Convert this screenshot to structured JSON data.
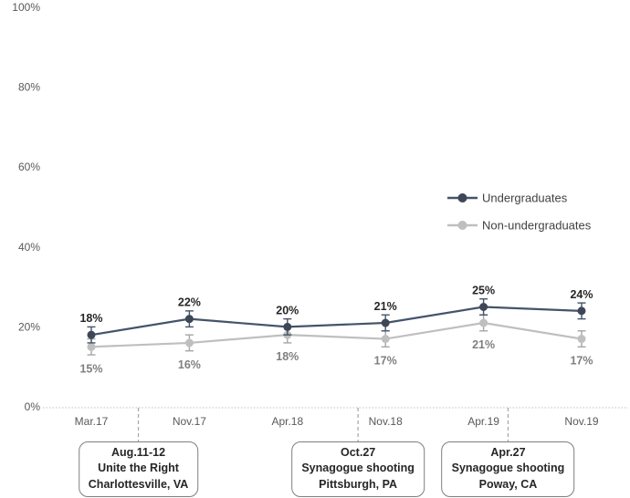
{
  "chart_data": {
    "type": "line",
    "title": "",
    "xlabel": "",
    "ylabel": "",
    "grid": false,
    "categories": [
      "Mar.17",
      "Nov.17",
      "Apr.18",
      "Nov.18",
      "Apr.19",
      "Nov.19"
    ],
    "series": [
      {
        "name": "Undergraduates",
        "values": [
          18,
          22,
          20,
          21,
          25,
          24
        ],
        "labels": [
          "18%",
          "22%",
          "20%",
          "21%",
          "25%",
          "24%"
        ],
        "color": "#44546A",
        "marker_color": "#3E4757",
        "error_color": "#44546A",
        "error": 2,
        "label_color": "#262626",
        "label_position": "above"
      },
      {
        "name": "Non-undergraduates",
        "values": [
          15,
          16,
          18,
          17,
          21,
          17
        ],
        "labels": [
          "15%",
          "16%",
          "18%",
          "17%",
          "21%",
          "17%"
        ],
        "color": "#BFBFBF",
        "marker_color": "#BFBFBF",
        "error_color": "#A6A6A6",
        "error": 2,
        "label_color": "#7F7F7F",
        "label_position": "below"
      }
    ],
    "y_axis": {
      "ticks": [
        "0%",
        "20%",
        "40%",
        "60%",
        "80%",
        "100%"
      ],
      "tick_values": [
        0,
        20,
        40,
        60,
        80,
        100
      ],
      "min": 0,
      "max": 100
    },
    "legend": {
      "position": "center-right",
      "entries": [
        "Undergraduates",
        "Non-undergraduates"
      ]
    },
    "annotations": [
      {
        "pos": 0.48,
        "lines": [
          "Aug.11-12",
          "Unite the Right",
          "Charlottesville, VA"
        ]
      },
      {
        "pos": 2.72,
        "lines": [
          "Oct.27",
          "Synagogue shooting",
          "Pittsburgh, PA"
        ]
      },
      {
        "pos": 4.25,
        "lines": [
          "Apr.27",
          "Synagogue shooting",
          "Poway, CA"
        ]
      }
    ]
  },
  "colors": {
    "background": "#FFFFFF",
    "axis_text": "#595959",
    "axis_line": "#BFBFBF",
    "event_line": "#A6A6A6",
    "box_border": "#7F7F7F",
    "legend_text": "#404040"
  }
}
